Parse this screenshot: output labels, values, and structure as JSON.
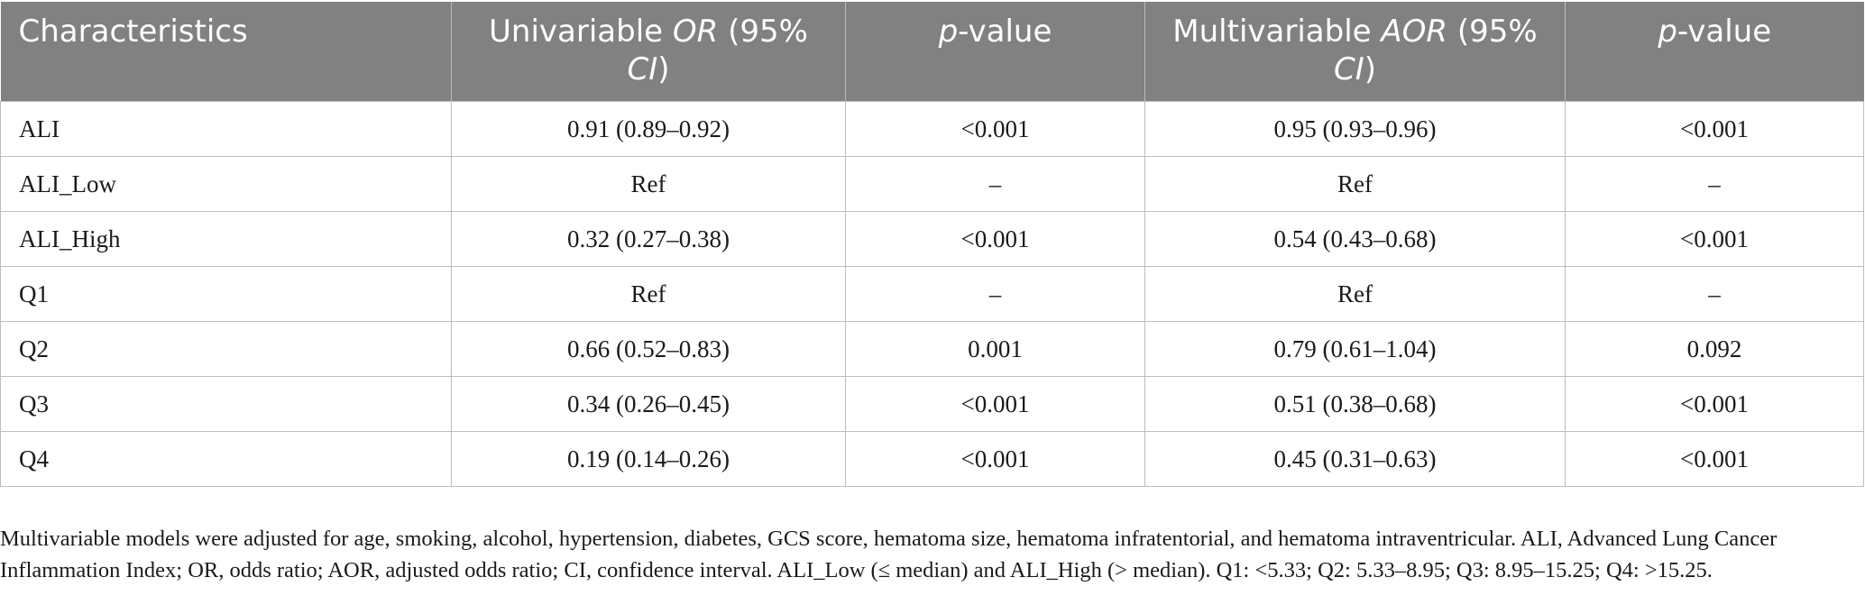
{
  "table": {
    "header": {
      "characteristics": "Characteristics",
      "univariable_pre": "Univariable ",
      "univariable_em": "OR",
      "univariable_mid": " (95% ",
      "univariable_em2": "CI",
      "univariable_post": ")",
      "p_em": "p",
      "p_post": "-value",
      "multivariable_pre": "Multivariable ",
      "multivariable_em": "AOR",
      "multivariable_mid": " (95% ",
      "multivariable_em2": "CI",
      "multivariable_post": ")",
      "p2_em": "p",
      "p2_post": "-value"
    },
    "rows": [
      [
        "ALI",
        "0.91 (0.89–0.92)",
        "<0.001",
        "0.95 (0.93–0.96)",
        "<0.001"
      ],
      [
        "ALI_Low",
        "Ref",
        "–",
        "Ref",
        "–"
      ],
      [
        "ALI_High",
        "0.32 (0.27–0.38)",
        "<0.001",
        "0.54 (0.43–0.68)",
        "<0.001"
      ],
      [
        "Q1",
        "Ref",
        "–",
        "Ref",
        "–"
      ],
      [
        "Q2",
        "0.66 (0.52–0.83)",
        "0.001",
        "0.79 (0.61–1.04)",
        "0.092"
      ],
      [
        "Q3",
        "0.34 (0.26–0.45)",
        "<0.001",
        "0.51 (0.38–0.68)",
        "<0.001"
      ],
      [
        "Q4",
        "0.19 (0.14–0.26)",
        "<0.001",
        "0.45 (0.31–0.63)",
        "<0.001"
      ]
    ]
  },
  "footnote": "Multivariable models were adjusted for age, smoking, alcohol, hypertension, diabetes, GCS score, hematoma size, hematoma infratentorial, and hematoma intraventricular. ALI, Advanced Lung Cancer Inflammation Index; OR, odds ratio; AOR, adjusted odds ratio; CI, confidence interval. ALI_Low (≤ median) and ALI_High (> median). Q1: <5.33; Q2: 5.33–8.95; Q3: 8.95–15.25; Q4: >15.25.",
  "colors": {
    "header_bg": "#808180",
    "header_text": "#ffffff",
    "grid": "#bdbdbd"
  }
}
